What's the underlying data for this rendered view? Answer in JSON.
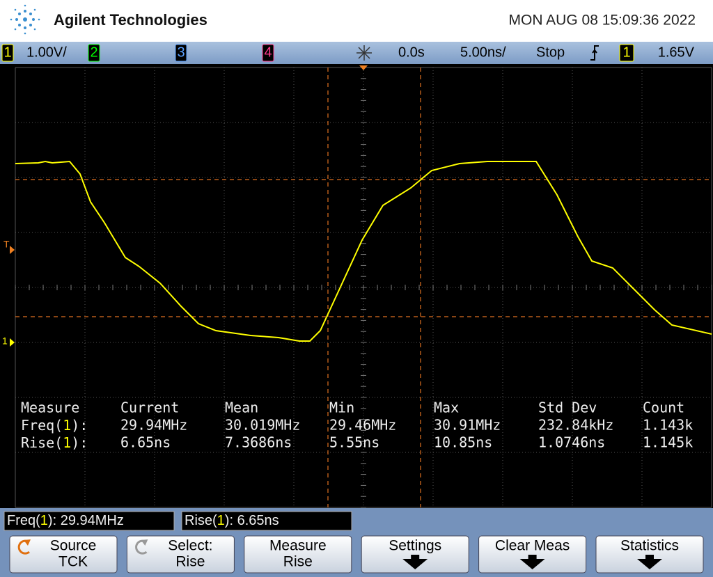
{
  "header": {
    "brand": "Agilent Technologies",
    "datetime": "MON AUG 08 15:09:36 2022"
  },
  "status_bar": {
    "ch1": "1",
    "ch1_scale": "1.00V/",
    "ch2": "2",
    "ch3": "3",
    "ch4": "4",
    "time_delay": "0.0s",
    "time_scale": "5.00ns/",
    "run_state": "Stop",
    "trigger_source": "1",
    "trigger_level": "1.65V"
  },
  "markers": {
    "trigger": "T",
    "ground": "1"
  },
  "measurements": {
    "headers": [
      "Measure",
      "Current",
      "Mean",
      "Min",
      "Max",
      "Std Dev",
      "Count"
    ],
    "rows": [
      {
        "name": "Freq(",
        "channel": "1",
        "close": "):",
        "values": [
          "29.94MHz",
          "30.019MHz",
          "29.46MHz",
          "30.91MHz",
          "232.84kHz",
          "1.143k"
        ]
      },
      {
        "name": "Rise(",
        "channel": "1",
        "close": "):",
        "values": [
          "6.65ns",
          "7.3686ns",
          "5.55ns",
          "10.85ns",
          "1.0746ns",
          "1.145k"
        ]
      }
    ]
  },
  "readouts": [
    {
      "name": "Freq(",
      "channel": "1",
      "value": "): 29.94MHz"
    },
    {
      "name": "Rise(",
      "channel": "1",
      "value": "): 6.65ns"
    }
  ],
  "softkeys": [
    {
      "label": "Source",
      "sub": "TCK"
    },
    {
      "label": "Select:",
      "sub": "Rise"
    },
    {
      "label": "Measure",
      "sub": "Rise"
    },
    {
      "label": "Settings"
    },
    {
      "label": "Clear Meas"
    },
    {
      "label": "Statistics"
    }
  ]
}
